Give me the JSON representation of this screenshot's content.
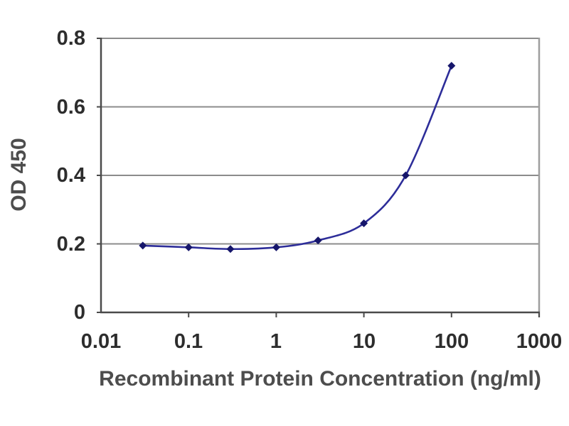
{
  "chart_data": {
    "type": "line",
    "title": "",
    "xlabel": "Recombinant Protein Concentration (ng/ml)",
    "ylabel": "OD 450",
    "x_scale": "log",
    "xlim": [
      0.01,
      1000
    ],
    "ylim": [
      0,
      0.8
    ],
    "x_ticks": [
      0.01,
      0.1,
      1,
      10,
      100,
      1000
    ],
    "x_tick_labels": [
      "0.01",
      "0.1",
      "1",
      "10",
      "100",
      "1000"
    ],
    "y_ticks": [
      0,
      0.2,
      0.4,
      0.6,
      0.8
    ],
    "y_tick_labels": [
      "0",
      "0.2",
      "0.4",
      "0.6",
      "0.8"
    ],
    "grid": "horizontal",
    "legend": "none",
    "series": [
      {
        "name": "OD 450",
        "x": [
          0.03,
          0.1,
          0.3,
          1,
          3,
          10,
          30,
          100
        ],
        "y": [
          0.195,
          0.19,
          0.185,
          0.19,
          0.21,
          0.26,
          0.4,
          0.72
        ],
        "marker": "diamond",
        "line_style": "smooth"
      }
    ]
  },
  "colors": {
    "background": "#ffffff",
    "gridline": "#8c8c8c",
    "frame_right": "#9e9e9e",
    "axis": "#4a4a4a",
    "tick_label": "#2d2d2d",
    "axis_title": "#4d4d4d",
    "series_line": "#2d2d99",
    "series_marker": "#16166b"
  }
}
